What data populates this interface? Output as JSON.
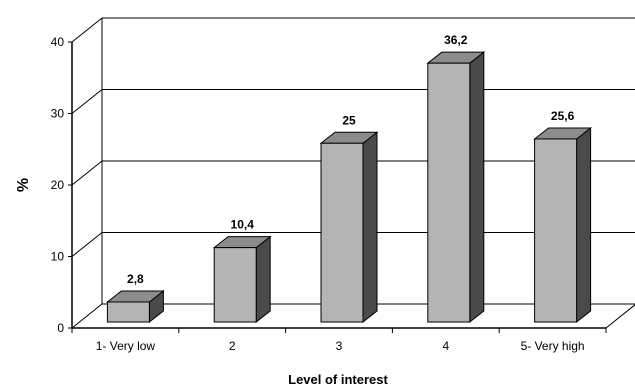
{
  "chart_data": {
    "type": "bar",
    "style": "3d",
    "categories": [
      "1- Very low",
      "2",
      "3",
      "4",
      "5- Very high"
    ],
    "values": [
      2.8,
      10.4,
      25,
      36.2,
      25.6
    ],
    "data_labels": [
      "2,8",
      "10,4",
      "25",
      "36,2",
      "25,6"
    ],
    "xlabel": "Level of interest",
    "ylabel": "%",
    "ylim": [
      0,
      40
    ],
    "yticks": [
      0,
      10,
      20,
      30,
      40
    ],
    "ytick_labels": [
      "0",
      "10",
      "20",
      "30",
      "40"
    ],
    "grid": true,
    "legend": "none",
    "colors": {
      "bar_front": "#b4b4b4",
      "bar_top": "#8c8c8c",
      "bar_side": "#4a4a4a",
      "line": "#000000",
      "background": "#ffffff"
    }
  }
}
